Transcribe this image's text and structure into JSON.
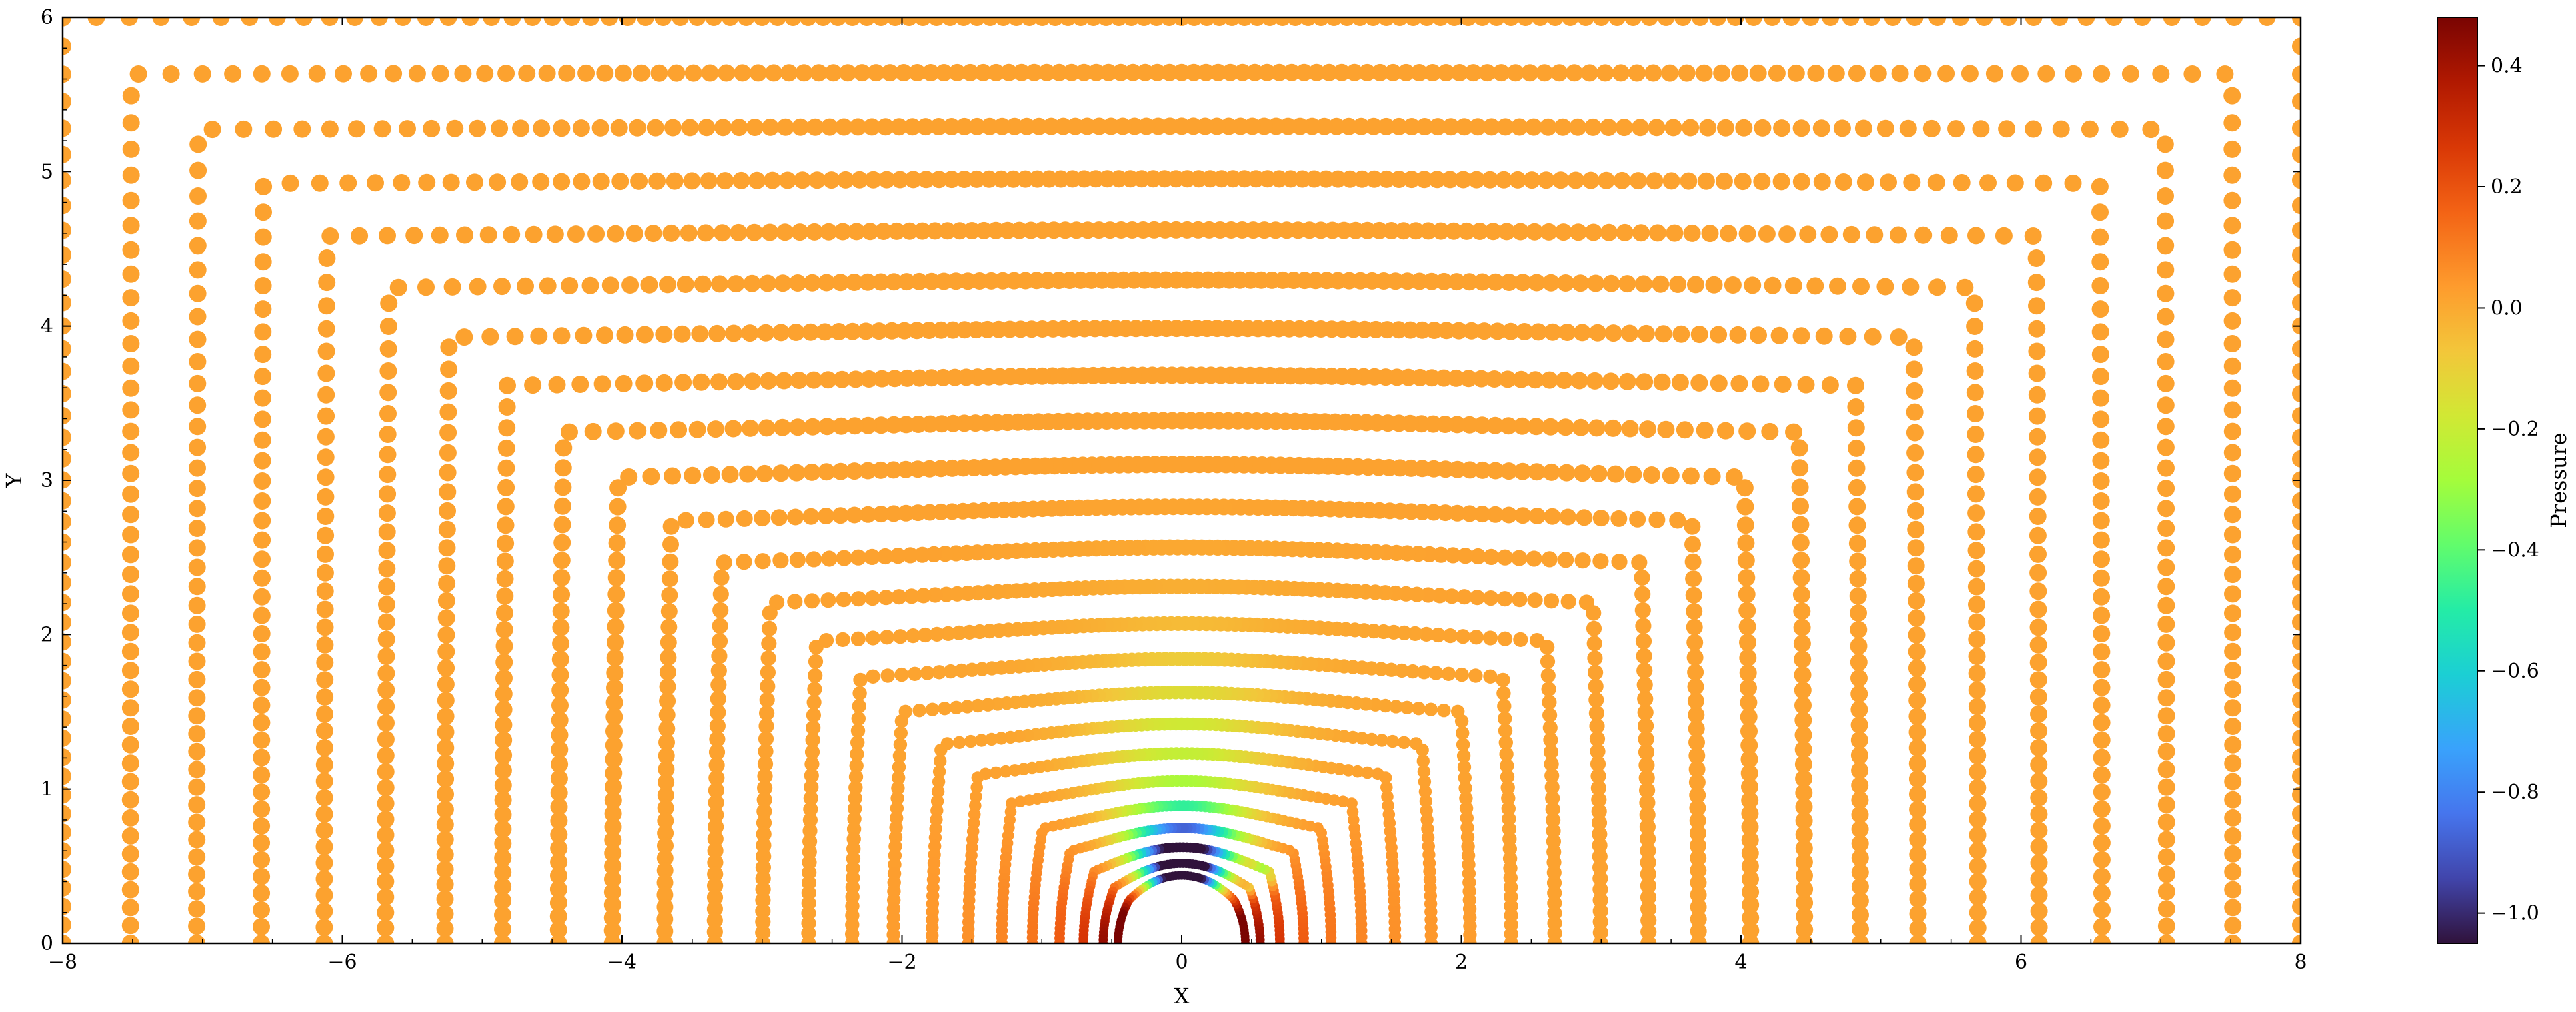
{
  "chart_data": {
    "type": "scatter",
    "title": "",
    "xlabel": "X",
    "ylabel": "Y",
    "xlim": [
      -8,
      8
    ],
    "ylim": [
      0,
      6
    ],
    "xticks": [
      -8,
      -6,
      -4,
      -2,
      0,
      2,
      4,
      6,
      8
    ],
    "yticks": [
      0,
      1,
      2,
      3,
      4,
      5,
      6
    ],
    "xtick_labels": [
      "−8",
      "−6",
      "−4",
      "−2",
      "0",
      "2",
      "4",
      "6",
      "8"
    ],
    "ytick_labels": [
      "0",
      "1",
      "2",
      "3",
      "4",
      "5",
      "6"
    ],
    "grid": false,
    "colormap": "turbo",
    "colorbar": {
      "label": "Pressure",
      "range": [
        -1.05,
        0.48
      ],
      "ticks": [
        0.4,
        0.2,
        0.0,
        -0.2,
        -0.4,
        -0.6,
        -0.8,
        -1.0
      ],
      "tick_labels": [
        "0.4",
        "0.2",
        "0.0",
        "−0.2",
        "−0.4",
        "−0.6",
        "−0.8",
        "−1.0"
      ]
    },
    "cylinder_radius": 0.4,
    "grid_layers": {
      "count": 24,
      "description_values": "Concentric O-grid layers around a half cylinder of radius 0.4 centred at (0,0); layers grow toward the rectangular outer boundary x = ±8, y = 6.",
      "outer_half_width": 8,
      "outer_height": 6,
      "far_field_pressure": 0.02
    },
    "pressure_field_features": [
      {
        "x": 0.0,
        "y": 0.5,
        "pressure": -1.0
      },
      {
        "x": 0.0,
        "y": 0.75,
        "pressure": -0.5
      },
      {
        "x": 0.0,
        "y": 1.3,
        "pressure": -0.15
      },
      {
        "x": -0.5,
        "y": 0.1,
        "pressure": 0.45
      },
      {
        "x": 0.5,
        "y": 0.1,
        "pressure": 0.45
      },
      {
        "x": 0.55,
        "y": 0.4,
        "pressure": -0.6
      },
      {
        "x": -4.0,
        "y": 3.0,
        "pressure": 0.02
      }
    ]
  }
}
